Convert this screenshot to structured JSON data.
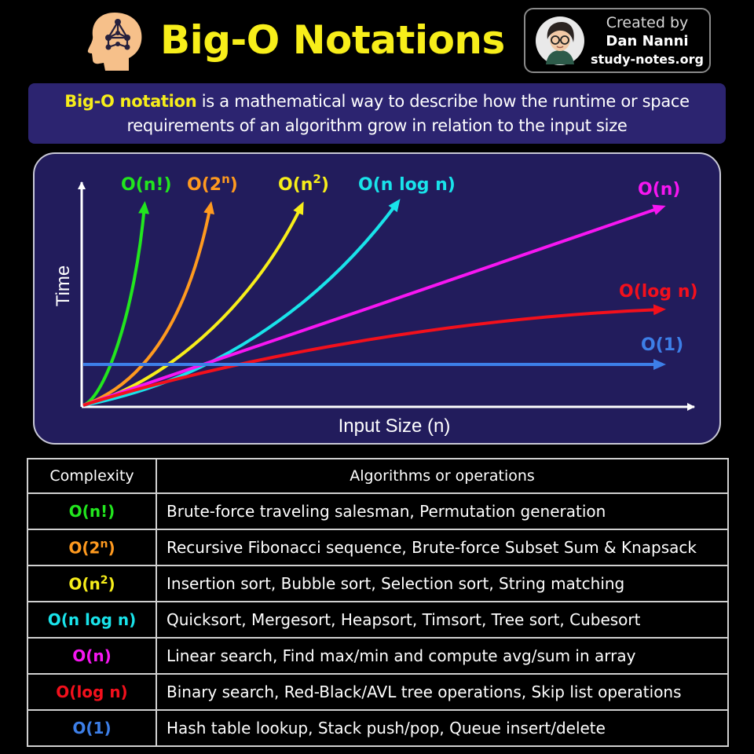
{
  "header": {
    "title": "Big-O Notations"
  },
  "credit": {
    "line1": "Created by",
    "line2": "Dan Nanni",
    "line3": "study-notes.org"
  },
  "definition": {
    "term": "Big-O notation",
    "text": " is a mathematical way to describe how the runtime or space requirements of an algorithm grow in relation to the input size"
  },
  "chart_data": {
    "type": "line",
    "title": "",
    "xlabel": "Input Size (n)",
    "ylabel": "Time",
    "series": [
      {
        "name": "O(n!)",
        "label_base": "O(n!)",
        "label_sup": "",
        "color": "#22e61e"
      },
      {
        "name": "O(2^n)",
        "label_base": "O(2",
        "label_sup": "n",
        "label_close": ")",
        "color": "#ff9a1f"
      },
      {
        "name": "O(n^2)",
        "label_base": "O(n",
        "label_sup": "2",
        "label_close": ")",
        "color": "#f7ee1a"
      },
      {
        "name": "O(n log n)",
        "label_base": "O(n log n)",
        "label_sup": "",
        "color": "#19e3ea"
      },
      {
        "name": "O(n)",
        "label_base": "O(n)",
        "label_sup": "",
        "color": "#f716f2"
      },
      {
        "name": "O(log n)",
        "label_base": "O(log n)",
        "label_sup": "",
        "color": "#f3101c"
      },
      {
        "name": "O(1)",
        "label_base": "O(1)",
        "label_sup": "",
        "color": "#3d7fe8"
      }
    ]
  },
  "table": {
    "headers": [
      "Complexity",
      "Algorithms or operations"
    ],
    "rows": [
      {
        "complexity_base": "O(n!)",
        "sup": "",
        "close": "",
        "color": "#22e61e",
        "ops": "Brute-force traveling salesman, Permutation generation"
      },
      {
        "complexity_base": "O(2",
        "sup": "n",
        "close": ")",
        "color": "#ff9a1f",
        "ops": "Recursive Fibonacci sequence, Brute-force Subset Sum & Knapsack"
      },
      {
        "complexity_base": "O(n",
        "sup": "2",
        "close": ")",
        "color": "#f7ee1a",
        "ops": "Insertion sort, Bubble sort, Selection sort, String matching"
      },
      {
        "complexity_base": "O(n log n)",
        "sup": "",
        "close": "",
        "color": "#19e3ea",
        "ops": "Quicksort, Mergesort, Heapsort, Timsort, Tree sort, Cubesort"
      },
      {
        "complexity_base": "O(n)",
        "sup": "",
        "close": "",
        "color": "#f716f2",
        "ops": "Linear search, Find max/min and compute avg/sum in array"
      },
      {
        "complexity_base": "O(log n)",
        "sup": "",
        "close": "",
        "color": "#f3101c",
        "ops": "Binary search, Red-Black/AVL tree operations, Skip list operations"
      },
      {
        "complexity_base": "O(1)",
        "sup": "",
        "close": "",
        "color": "#3d7fe8",
        "ops": "Hash table lookup, Stack push/pop, Queue insert/delete"
      }
    ]
  }
}
